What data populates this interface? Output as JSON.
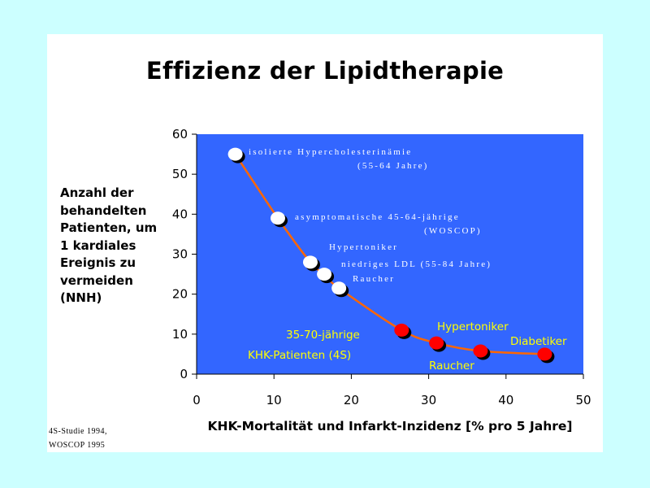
{
  "title": "Effizienz der Lipidtherapie",
  "source": "4S-Studie 1994,\nWOSCOP 1995",
  "colors": {
    "page_bg": "#ccffff",
    "plot_bg": "#3366ff",
    "curve": "#ff6600",
    "point_white": "#ffffff",
    "point_red": "#ff0000",
    "label_yellow": "#ffff00"
  },
  "chart_data": {
    "type": "line",
    "title": "Effizienz der Lipidtherapie",
    "xlabel": "KHK-Mortalität und Infarkt-Inzidenz [% pro 5 Jahre]",
    "ylabel": "Anzahl der\nbehandelten\nPatienten, um\n1 kardiales\nEreignis zu\nvermeiden\n(NNH)",
    "xlim": [
      0,
      50
    ],
    "ylim": [
      0,
      60
    ],
    "xticks": [
      "0",
      "10",
      "20",
      "30",
      "40",
      "50"
    ],
    "yticks": [
      "0",
      "10",
      "20",
      "30",
      "40",
      "50",
      "60"
    ],
    "grid": false,
    "series": [
      {
        "group": "primary-prevention",
        "color": "#ffffff",
        "points": [
          [
            5,
            55
          ],
          [
            10.5,
            39
          ],
          [
            14.7,
            28
          ],
          [
            16.5,
            25
          ],
          [
            18.4,
            21.5
          ]
        ]
      },
      {
        "group": "secondary-prevention",
        "color": "#ff0000",
        "points": [
          [
            26.5,
            11
          ],
          [
            31,
            7.8
          ],
          [
            36.7,
            5.8
          ],
          [
            45,
            5
          ]
        ]
      }
    ],
    "annotations": [
      {
        "text": "isolierte Hypercholesterinämie",
        "style": "white"
      },
      {
        "text": "(55-64 Jahre)",
        "style": "white"
      },
      {
        "text": "asymptomatische 45-64-jährige",
        "style": "white"
      },
      {
        "text": "(WOSCOP)",
        "style": "white"
      },
      {
        "text": "Hypertoniker",
        "style": "white"
      },
      {
        "text": "niedriges LDL (55-84 Jahre)",
        "style": "white"
      },
      {
        "text": "Raucher",
        "style": "white"
      },
      {
        "text": "35-70-jährige",
        "style": "yellow"
      },
      {
        "text": "KHK-Patienten (4S)",
        "style": "yellow"
      },
      {
        "text": "Hypertoniker",
        "style": "yellow"
      },
      {
        "text": "Raucher",
        "style": "yellow"
      },
      {
        "text": "Diabetiker",
        "style": "yellow"
      }
    ]
  }
}
